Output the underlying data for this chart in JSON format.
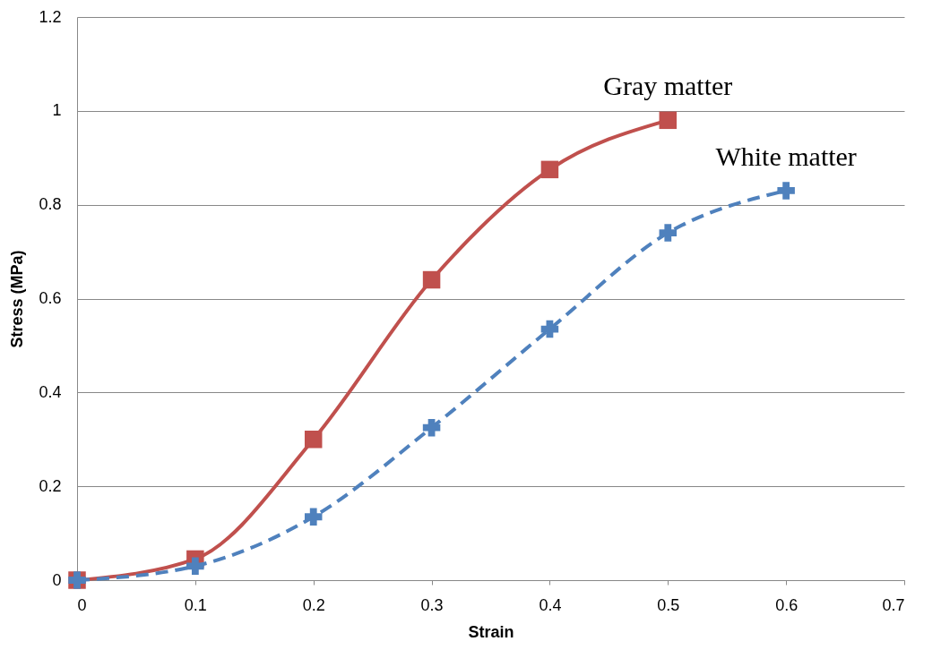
{
  "chart_data": {
    "type": "line",
    "xlabel": "Strain",
    "ylabel": "Stress (MPa)",
    "xlim": [
      0,
      0.7
    ],
    "xticks": [
      0,
      0.1,
      0.2,
      0.3,
      0.4,
      0.5,
      0.6,
      0.7
    ],
    "ylim": [
      0,
      1.2
    ],
    "yticks": [
      0,
      0.2,
      0.4,
      0.6,
      0.8,
      1,
      1.2
    ],
    "grid": "y",
    "series": [
      {
        "name": "Gray matter",
        "color": "#c0504d",
        "marker": "square",
        "line_style": "solid",
        "x": [
          0,
          0.1,
          0.2,
          0.3,
          0.4,
          0.5
        ],
        "values": [
          0,
          0.045,
          0.3,
          0.64,
          0.875,
          0.98
        ]
      },
      {
        "name": "White matter",
        "color": "#4f81bd",
        "marker": "cross",
        "line_style": "dashed",
        "x": [
          0,
          0.1,
          0.2,
          0.3,
          0.4,
          0.5,
          0.6
        ],
        "values": [
          0,
          0.03,
          0.135,
          0.325,
          0.535,
          0.74,
          0.83
        ]
      }
    ]
  }
}
